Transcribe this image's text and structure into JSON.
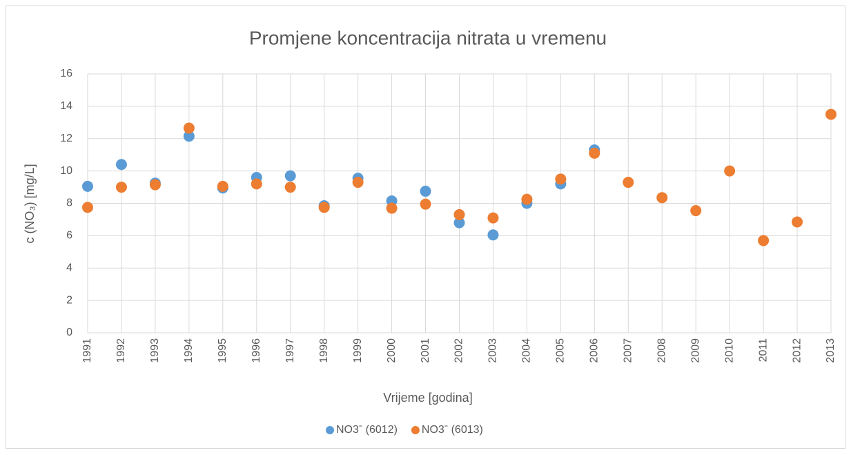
{
  "chart_data": {
    "type": "scatter",
    "title": "Promjene koncentracija nitrata u vremenu",
    "xlabel": "Vrijeme [godina]",
    "ylabel": "c (NO₃) [mg/L]",
    "x": [
      1991,
      1992,
      1993,
      1994,
      1995,
      1996,
      1997,
      1998,
      1999,
      2000,
      2001,
      2002,
      2003,
      2004,
      2005,
      2006,
      2007,
      2008,
      2009,
      2010,
      2011,
      2012,
      2013
    ],
    "series": [
      {
        "name": "NO3ˉ (6012)",
        "color": "#5b9bd5",
        "values": [
          9.05,
          10.4,
          9.25,
          12.15,
          8.95,
          9.6,
          9.7,
          7.85,
          9.55,
          8.15,
          8.75,
          6.8,
          6.05,
          8.0,
          9.2,
          11.3,
          null,
          null,
          null,
          null,
          null,
          null,
          null
        ]
      },
      {
        "name": "NO3ˉ (6013)",
        "color": "#ed7d31",
        "values": [
          7.75,
          9.0,
          9.15,
          12.65,
          9.05,
          9.2,
          9.0,
          7.75,
          9.3,
          7.7,
          7.95,
          7.3,
          7.1,
          8.25,
          9.5,
          11.1,
          9.3,
          8.35,
          7.55,
          10.0,
          5.7,
          6.85,
          13.5
        ]
      }
    ],
    "xlim": [
      1991,
      2013
    ],
    "xticks": [
      1991,
      1992,
      1993,
      1994,
      1995,
      1996,
      1997,
      1998,
      1999,
      2000,
      2001,
      2002,
      2003,
      2004,
      2005,
      2006,
      2007,
      2008,
      2009,
      2010,
      2011,
      2012,
      2013
    ],
    "ylim": [
      0,
      16
    ],
    "yticks": [
      0,
      2,
      4,
      6,
      8,
      10,
      12,
      14,
      16
    ],
    "grid": true,
    "legend": "bottom"
  }
}
